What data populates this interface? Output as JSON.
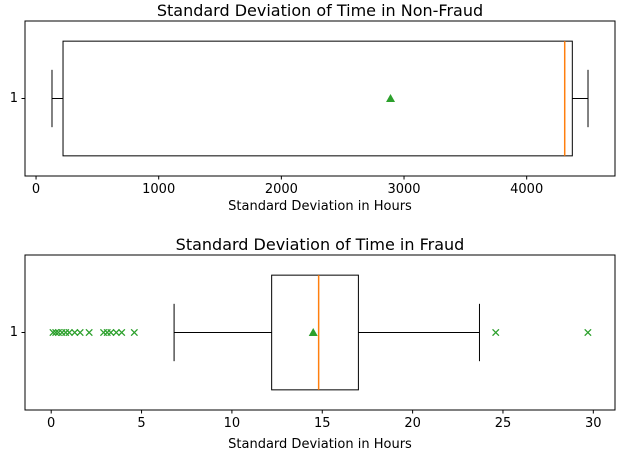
{
  "figure": {
    "background": "#ffffff"
  },
  "colors": {
    "frame_stroke": "#000000",
    "box_stroke": "#000000",
    "box_fill": "#ffffff",
    "whisker": "#000000",
    "median": "#ff7f0e",
    "mean_marker": "#2ca02c",
    "flier_marker": "#2ca02c",
    "text": "#000000"
  },
  "chart_data": [
    {
      "type": "boxplot",
      "orientation": "horizontal",
      "title": "Standard Deviation of Time in Non-Fraud",
      "xlabel": "Standard Deviation in Hours",
      "ytick_label": "1",
      "xlim": [
        -90,
        4720
      ],
      "xticks": [
        0,
        1000,
        2000,
        3000,
        4000
      ],
      "grid": false,
      "legend": null,
      "box": {
        "whisker_low": 130,
        "q1": 220,
        "median": 4310,
        "q3": 4372,
        "whisker_high": 4500,
        "mean": 2890,
        "fliers": []
      }
    },
    {
      "type": "boxplot",
      "orientation": "horizontal",
      "title": "Standard Deviation of Time in Fraud",
      "xlabel": "Standard Deviation in Hours",
      "ytick_label": "1",
      "xlim": [
        -1.45,
        31.2
      ],
      "xticks": [
        0,
        5,
        10,
        15,
        20,
        25,
        30
      ],
      "grid": false,
      "legend": null,
      "box": {
        "whisker_low": 6.8,
        "q1": 12.2,
        "median": 14.8,
        "q3": 17.0,
        "whisker_high": 23.7,
        "mean": 14.5,
        "fliers": [
          0.1,
          0.25,
          0.4,
          0.6,
          0.8,
          1.0,
          1.3,
          1.6,
          2.1,
          2.9,
          3.1,
          3.3,
          3.6,
          3.9,
          4.6,
          24.6,
          29.7
        ]
      }
    }
  ]
}
